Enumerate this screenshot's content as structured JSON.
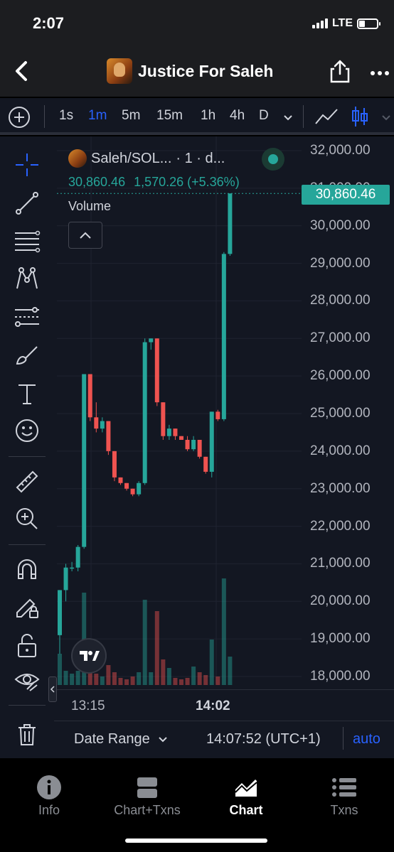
{
  "status": {
    "time": "2:07",
    "network": "LTE",
    "battery_level": 0.35
  },
  "header": {
    "title": "Justice For Saleh"
  },
  "toolbar": {
    "intervals": [
      "1s",
      "1m",
      "5m",
      "15m",
      "1h",
      "4h",
      "D"
    ],
    "active_interval": "1m"
  },
  "legend": {
    "symbol": "Saleh/SOL...",
    "resolution": "· 1 · d...",
    "last": "30,860.46",
    "change": "1,570.26 (+5.36%)",
    "volume_label": "Volume"
  },
  "colors": {
    "up": "#26a69a",
    "down": "#ef5350",
    "accent": "#2962ff",
    "background": "#131722"
  },
  "chart_data": {
    "type": "candlestick",
    "price_axis": [
      "32,000.00",
      "31,000.00",
      "30,000.00",
      "29,000.00",
      "28,000.00",
      "27,000.00",
      "26,000.00",
      "25,000.00",
      "24,000.00",
      "23,000.00",
      "22,000.00",
      "21,000.00",
      "20,000.00",
      "19,000.00",
      "18,000.00"
    ],
    "ylim": [
      18000,
      32000
    ],
    "last_price_label": "30,860.46",
    "time_labels": [
      "13:15",
      "14:02"
    ],
    "candles": [
      {
        "o": 19100,
        "h": 20300,
        "l": 18600,
        "c": 20300
      },
      {
        "o": 20300,
        "h": 21000,
        "l": 20000,
        "c": 20900
      },
      {
        "o": 20900,
        "h": 21050,
        "l": 20800,
        "c": 20900
      },
      {
        "o": 20900,
        "h": 21500,
        "l": 20800,
        "c": 21450
      },
      {
        "o": 21450,
        "h": 26050,
        "l": 21400,
        "c": 26050
      },
      {
        "o": 26050,
        "h": 26050,
        "l": 24800,
        "c": 24900
      },
      {
        "o": 24900,
        "h": 25300,
        "l": 24500,
        "c": 24600
      },
      {
        "o": 24600,
        "h": 24900,
        "l": 24500,
        "c": 24800
      },
      {
        "o": 24800,
        "h": 24800,
        "l": 23900,
        "c": 24000
      },
      {
        "o": 24000,
        "h": 24000,
        "l": 23200,
        "c": 23300
      },
      {
        "o": 23300,
        "h": 23300,
        "l": 23100,
        "c": 23150
      },
      {
        "o": 23150,
        "h": 23150,
        "l": 22950,
        "c": 23000
      },
      {
        "o": 23000,
        "h": 23000,
        "l": 22800,
        "c": 22850
      },
      {
        "o": 22850,
        "h": 23200,
        "l": 22800,
        "c": 23150
      },
      {
        "o": 23150,
        "h": 27000,
        "l": 23100,
        "c": 26900
      },
      {
        "o": 26900,
        "h": 27000,
        "l": 26700,
        "c": 27000
      },
      {
        "o": 27000,
        "h": 27000,
        "l": 25200,
        "c": 25300
      },
      {
        "o": 25300,
        "h": 25300,
        "l": 24300,
        "c": 24400
      },
      {
        "o": 24400,
        "h": 24700,
        "l": 24300,
        "c": 24600
      },
      {
        "o": 24600,
        "h": 24600,
        "l": 24300,
        "c": 24400
      },
      {
        "o": 24400,
        "h": 24400,
        "l": 24300,
        "c": 24300
      },
      {
        "o": 24300,
        "h": 24400,
        "l": 24000,
        "c": 24050
      },
      {
        "o": 24050,
        "h": 24400,
        "l": 24000,
        "c": 24300
      },
      {
        "o": 24300,
        "h": 24300,
        "l": 23800,
        "c": 23850
      },
      {
        "o": 23850,
        "h": 23850,
        "l": 23400,
        "c": 23450
      },
      {
        "o": 23450,
        "h": 25050,
        "l": 23300,
        "c": 25050
      },
      {
        "o": 25050,
        "h": 25100,
        "l": 24800,
        "c": 24850
      },
      {
        "o": 24850,
        "h": 29300,
        "l": 24800,
        "c": 29250
      },
      {
        "o": 29250,
        "h": 30860,
        "l": 29200,
        "c": 30860
      }
    ],
    "volumes": [
      2.2,
      1.0,
      0.8,
      1.0,
      6.5,
      1.0,
      0.8,
      0.6,
      1.4,
      0.9,
      0.5,
      0.4,
      0.6,
      0.9,
      6.0,
      0.9,
      5.2,
      1.8,
      1.2,
      0.5,
      0.4,
      0.5,
      1.3,
      0.9,
      0.7,
      3.2,
      0.6,
      7.5,
      2.0
    ]
  },
  "footer": {
    "date_range": "Date Range",
    "clock": "14:07:52 (UTC+1)",
    "auto": "auto"
  },
  "nav": [
    {
      "label": "Info",
      "icon": "info-icon"
    },
    {
      "label": "Chart+Txns",
      "icon": "chart-txns-icon"
    },
    {
      "label": "Chart",
      "icon": "chart-icon",
      "active": true
    },
    {
      "label": "Txns",
      "icon": "txns-list-icon"
    }
  ]
}
